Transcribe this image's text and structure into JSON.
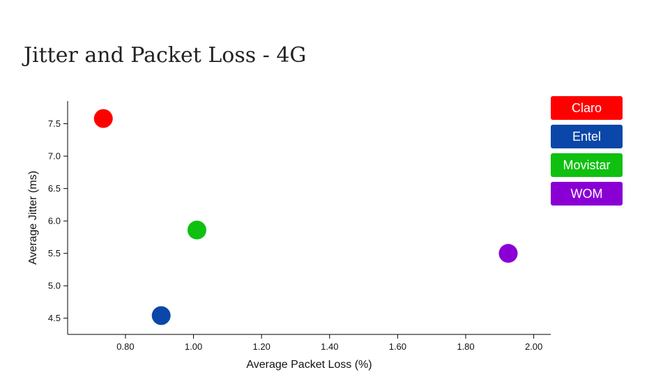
{
  "chart_data": {
    "type": "scatter",
    "title": "Jitter and Packet Loss - 4G",
    "xlabel": "Average Packet Loss (%)",
    "ylabel": "Average Jitter (ms)",
    "xlim": [
      0.63,
      2.05
    ],
    "ylim": [
      4.25,
      7.85
    ],
    "x_ticks": [
      "0.80",
      "1.00",
      "1.20",
      "1.40",
      "1.60",
      "1.80",
      "2.00"
    ],
    "y_ticks": [
      "4.5",
      "5.0",
      "5.5",
      "6.0",
      "6.5",
      "7.0",
      "7.5"
    ],
    "grid": false,
    "legend_position": "top-right",
    "series": [
      {
        "name": "Claro",
        "color": "#ff0000",
        "x": 0.735,
        "y": 7.58
      },
      {
        "name": "Entel",
        "color": "#0a47a8",
        "x": 0.905,
        "y": 4.54
      },
      {
        "name": "Movistar",
        "color": "#10c010",
        "x": 1.01,
        "y": 5.86
      },
      {
        "name": "WOM",
        "color": "#8a00d4",
        "x": 1.925,
        "y": 5.5
      }
    ]
  }
}
